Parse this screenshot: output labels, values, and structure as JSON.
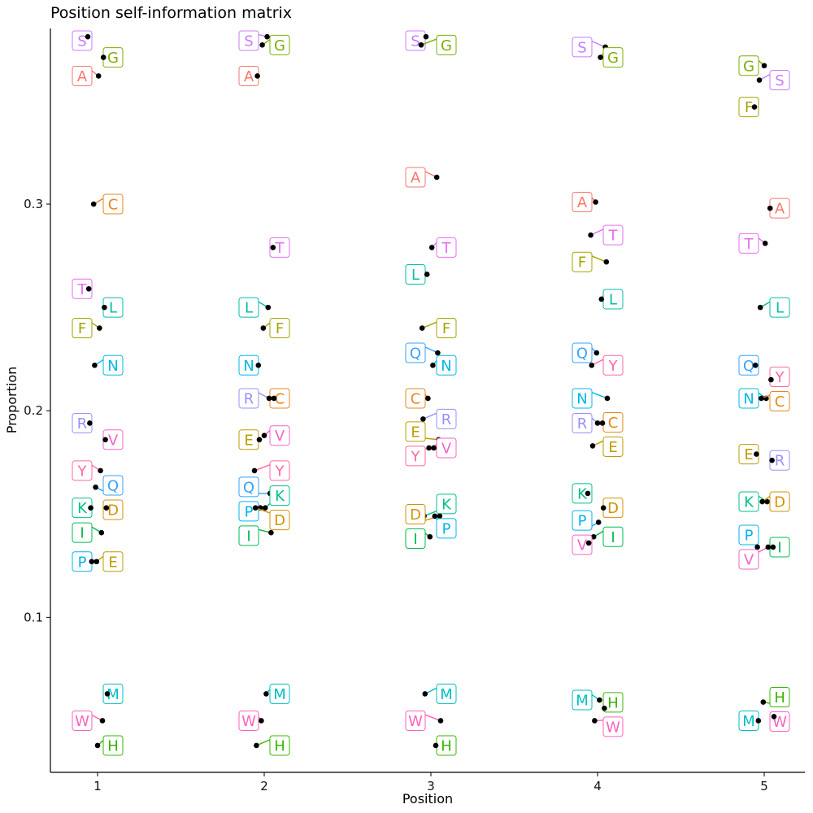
{
  "chart_data": {
    "type": "scatter",
    "title": "Position self-information matrix",
    "xlabel": "Position",
    "ylabel": "Proportion",
    "x_categories": [
      "1",
      "2",
      "3",
      "4",
      "5"
    ],
    "ylim": [
      0.025,
      0.385
    ],
    "yticks": [
      0.1,
      0.2,
      0.3
    ],
    "ytick_labels": [
      "0.1",
      "0.2",
      "0.3"
    ],
    "grid": false,
    "legend": "none",
    "colors": {
      "A": "#F8766D",
      "C": "#E7861B",
      "D": "#D39200",
      "E": "#BE9C00",
      "F": "#A3A500",
      "G": "#7CAE00",
      "H": "#39B600",
      "I": "#00BB4E",
      "K": "#00C08B",
      "L": "#00BFAA",
      "M": "#00BFC4",
      "N": "#00B8E7",
      "P": "#00B4F0",
      "Q": "#35A2FF",
      "R": "#9590FF",
      "S": "#C77CFF",
      "T": "#E76BF3",
      "V": "#F563C7",
      "W": "#FF62BC",
      "Y": "#FF67A4"
    },
    "series": [
      {
        "position": 1,
        "points": [
          {
            "label": "S",
            "y": 0.381
          },
          {
            "label": "G",
            "y": 0.371
          },
          {
            "label": "A",
            "y": 0.362
          },
          {
            "label": "C",
            "y": 0.3
          },
          {
            "label": "T",
            "y": 0.259
          },
          {
            "label": "L",
            "y": 0.25
          },
          {
            "label": "F",
            "y": 0.24
          },
          {
            "label": "N",
            "y": 0.222
          },
          {
            "label": "R",
            "y": 0.194
          },
          {
            "label": "V",
            "y": 0.186
          },
          {
            "label": "Y",
            "y": 0.171
          },
          {
            "label": "Q",
            "y": 0.163
          },
          {
            "label": "K",
            "y": 0.153
          },
          {
            "label": "D",
            "y": 0.153
          },
          {
            "label": "I",
            "y": 0.141
          },
          {
            "label": "E",
            "y": 0.127
          },
          {
            "label": "P",
            "y": 0.127
          },
          {
            "label": "M",
            "y": 0.063
          },
          {
            "label": "W",
            "y": 0.05
          },
          {
            "label": "H",
            "y": 0.038
          }
        ]
      },
      {
        "position": 2,
        "points": [
          {
            "label": "S",
            "y": 0.381
          },
          {
            "label": "G",
            "y": 0.377
          },
          {
            "label": "A",
            "y": 0.362
          },
          {
            "label": "T",
            "y": 0.279
          },
          {
            "label": "L",
            "y": 0.25
          },
          {
            "label": "F",
            "y": 0.24
          },
          {
            "label": "N",
            "y": 0.222
          },
          {
            "label": "C",
            "y": 0.206
          },
          {
            "label": "R",
            "y": 0.206
          },
          {
            "label": "V",
            "y": 0.188
          },
          {
            "label": "E",
            "y": 0.186
          },
          {
            "label": "Y",
            "y": 0.171
          },
          {
            "label": "Q",
            "y": 0.16
          },
          {
            "label": "K",
            "y": 0.153
          },
          {
            "label": "P",
            "y": 0.153
          },
          {
            "label": "D",
            "y": 0.153
          },
          {
            "label": "I",
            "y": 0.141
          },
          {
            "label": "M",
            "y": 0.063
          },
          {
            "label": "W",
            "y": 0.05
          },
          {
            "label": "H",
            "y": 0.038
          }
        ]
      },
      {
        "position": 3,
        "points": [
          {
            "label": "S",
            "y": 0.381
          },
          {
            "label": "G",
            "y": 0.377
          },
          {
            "label": "A",
            "y": 0.313
          },
          {
            "label": "T",
            "y": 0.279
          },
          {
            "label": "L",
            "y": 0.266
          },
          {
            "label": "F",
            "y": 0.24
          },
          {
            "label": "Q",
            "y": 0.228
          },
          {
            "label": "N",
            "y": 0.222
          },
          {
            "label": "C",
            "y": 0.206
          },
          {
            "label": "R",
            "y": 0.196
          },
          {
            "label": "E",
            "y": 0.186
          },
          {
            "label": "V",
            "y": 0.182
          },
          {
            "label": "Y",
            "y": 0.182
          },
          {
            "label": "K",
            "y": 0.149
          },
          {
            "label": "D",
            "y": 0.149
          },
          {
            "label": "P",
            "y": 0.149
          },
          {
            "label": "I",
            "y": 0.139
          },
          {
            "label": "M",
            "y": 0.063
          },
          {
            "label": "W",
            "y": 0.05
          },
          {
            "label": "H",
            "y": 0.038
          }
        ]
      },
      {
        "position": 4,
        "points": [
          {
            "label": "S",
            "y": 0.376
          },
          {
            "label": "G",
            "y": 0.371
          },
          {
            "label": "A",
            "y": 0.301
          },
          {
            "label": "T",
            "y": 0.285
          },
          {
            "label": "F",
            "y": 0.272
          },
          {
            "label": "L",
            "y": 0.254
          },
          {
            "label": "Q",
            "y": 0.228
          },
          {
            "label": "Y",
            "y": 0.222
          },
          {
            "label": "N",
            "y": 0.206
          },
          {
            "label": "C",
            "y": 0.194
          },
          {
            "label": "R",
            "y": 0.194
          },
          {
            "label": "E",
            "y": 0.183
          },
          {
            "label": "K",
            "y": 0.16
          },
          {
            "label": "D",
            "y": 0.153
          },
          {
            "label": "P",
            "y": 0.146
          },
          {
            "label": "I",
            "y": 0.139
          },
          {
            "label": "V",
            "y": 0.136
          },
          {
            "label": "H",
            "y": 0.056
          },
          {
            "label": "M",
            "y": 0.06
          },
          {
            "label": "W",
            "y": 0.05
          }
        ]
      },
      {
        "position": 5,
        "points": [
          {
            "label": "G",
            "y": 0.367
          },
          {
            "label": "S",
            "y": 0.36
          },
          {
            "label": "F",
            "y": 0.347
          },
          {
            "label": "A",
            "y": 0.298
          },
          {
            "label": "T",
            "y": 0.281
          },
          {
            "label": "L",
            "y": 0.25
          },
          {
            "label": "Q",
            "y": 0.222
          },
          {
            "label": "Y",
            "y": 0.215
          },
          {
            "label": "N",
            "y": 0.206
          },
          {
            "label": "C",
            "y": 0.206
          },
          {
            "label": "E",
            "y": 0.179
          },
          {
            "label": "R",
            "y": 0.176
          },
          {
            "label": "K",
            "y": 0.156
          },
          {
            "label": "D",
            "y": 0.156
          },
          {
            "label": "P",
            "y": 0.134
          },
          {
            "label": "I",
            "y": 0.134
          },
          {
            "label": "V",
            "y": 0.134
          },
          {
            "label": "H",
            "y": 0.059
          },
          {
            "label": "M",
            "y": 0.05
          },
          {
            "label": "W",
            "y": 0.052
          }
        ]
      }
    ]
  }
}
